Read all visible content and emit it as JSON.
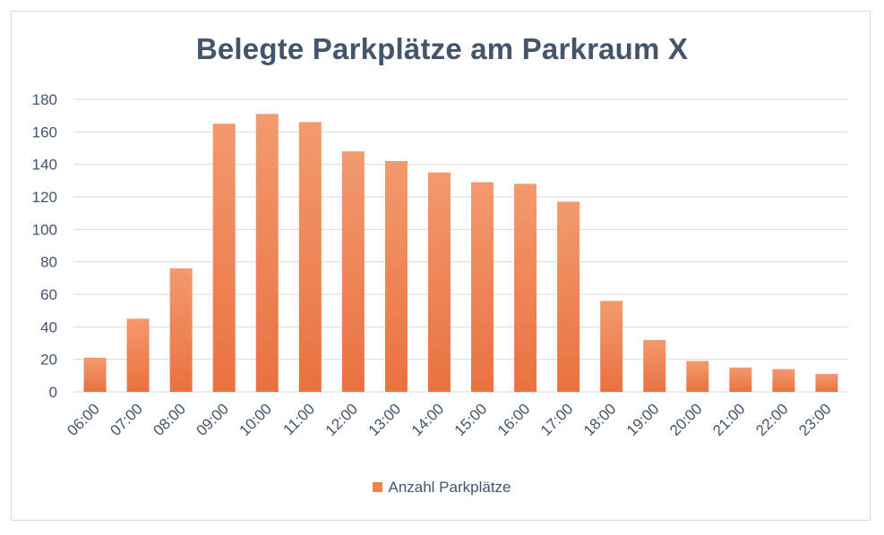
{
  "chart_data": {
    "type": "bar",
    "title": "Belegte Parkplätze am Parkraum X",
    "xlabel": "",
    "ylabel": "",
    "categories": [
      "06:00",
      "07:00",
      "08:00",
      "09:00",
      "10:00",
      "11:00",
      "12:00",
      "13:00",
      "14:00",
      "15:00",
      "16:00",
      "17:00",
      "18:00",
      "19:00",
      "20:00",
      "21:00",
      "22:00",
      "23:00"
    ],
    "series": [
      {
        "name": "Anzahl Parkplätze",
        "values": [
          21,
          45,
          76,
          165,
          171,
          166,
          148,
          142,
          135,
          129,
          128,
          117,
          56,
          32,
          19,
          15,
          14,
          11
        ]
      }
    ],
    "ylim": [
      0,
      180
    ],
    "yticks": [
      "0",
      "20",
      "40",
      "60",
      "80",
      "100",
      "120",
      "140",
      "160",
      "180"
    ],
    "grid": true,
    "legend_position": "bottom",
    "colors": {
      "bar_top": "#f29a6e",
      "bar_bottom": "#ea7140",
      "text": "#44546a",
      "grid": "#d9d9d9"
    }
  }
}
